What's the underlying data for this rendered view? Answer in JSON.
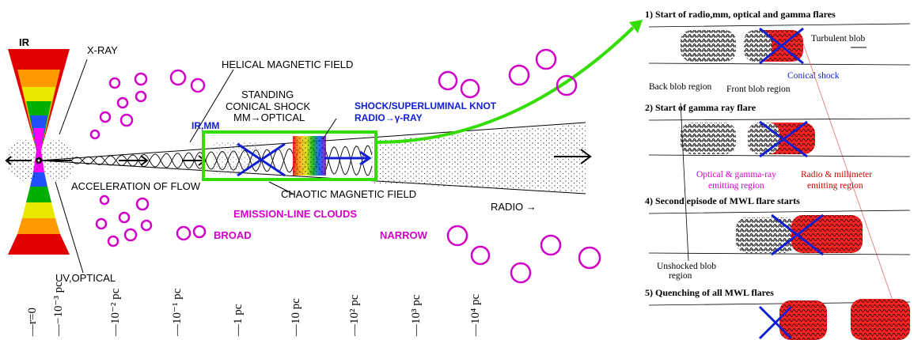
{
  "left": {
    "ir": "IR",
    "xray": "X-RAY",
    "uv_optical": "UV,OPTICAL",
    "helical": "HELICAL MAGNETIC FIELD",
    "standing1": "STANDING",
    "standing2": "CONICAL SHOCK",
    "mm_optical": "MM→OPTICAL",
    "ir_mm": "IR,MM",
    "shock1": "SHOCK/SUPERLUMINAL KNOT",
    "shock2": "RADIO→γ-RAY",
    "acceleration": "ACCELERATION OF FLOW",
    "chaotic": "CHAOTIC MAGNETIC FIELD",
    "emission": "EMISSION-LINE CLOUDS",
    "broad": "BROAD",
    "narrow": "NARROW",
    "radio": "RADIO →",
    "scale": [
      "r=0",
      "−10⁻³ pc",
      "10⁻² pc",
      "10⁻¹ pc",
      "1 pc",
      "10 pc",
      "10² pc",
      "10³ pc",
      "10⁴ pc"
    ]
  },
  "right": {
    "step1": "1) Start of radio,mm, optical and gamma flares",
    "turbulent": "Turbulent blob",
    "conical": "Conical shock",
    "back": "Back blob region",
    "front": "Front blob region",
    "step2": "2) Start of gamma ray flare",
    "optical_gamma1": "Optical & gamma-ray",
    "optical_gamma2": "emitting region",
    "radio_mm1": "Radio & millimeter",
    "radio_mm2": "emitting region",
    "step4": "4) Second episode of MWL flare starts",
    "unshocked1": "Unshocked blob",
    "unshocked2": "region",
    "step5": "5) Quenching of all MWL flares"
  }
}
